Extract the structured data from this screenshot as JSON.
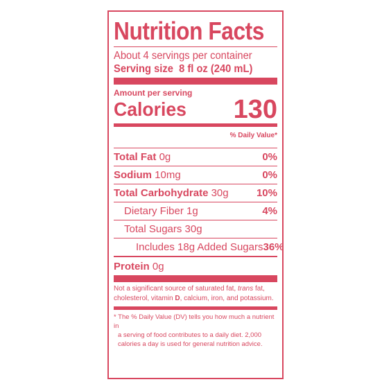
{
  "label": {
    "title": "Nutrition Facts",
    "servings": "About 4 servings per container",
    "serving_size_label": "Serving size",
    "serving_size_value": "8 fl oz (240 mL)",
    "amount_per_serving": "Amount per serving",
    "calories_label": "Calories",
    "calories_value": "130",
    "daily_value_header": "% Daily Value*",
    "nutrients": [
      {
        "name": "Total Fat",
        "amount": "0g",
        "dv": "0%"
      },
      {
        "name": "Sodium",
        "amount": "10mg",
        "dv": "0%"
      },
      {
        "name": "Total Carbohydrate",
        "amount": "30g",
        "dv": "10%"
      },
      {
        "name": "Dietary Fiber 1g",
        "amount": "",
        "dv": "4%"
      },
      {
        "name": "Total Sugars 30g",
        "amount": "",
        "dv": ""
      },
      {
        "name": "Includes 18g Added Sugars",
        "amount": "",
        "dv": "36%"
      },
      {
        "name": "Protein",
        "amount": "0g",
        "dv": ""
      }
    ],
    "not_significant_a": "Not a significant source of saturated fat, ",
    "not_significant_trans": "trans",
    "not_significant_b": " fat, cholesterol, vitamin ",
    "not_significant_d": "D",
    "not_significant_c": ", calcium, iron, and potassium.",
    "dv_note_first": "* The % Daily Value (DV) tells you how much a nutrient in",
    "dv_note_rest": "a serving of food contributes to a daily diet. 2,000 calories a day is used for general nutrition advice.",
    "accent_color": "#d8475f"
  }
}
